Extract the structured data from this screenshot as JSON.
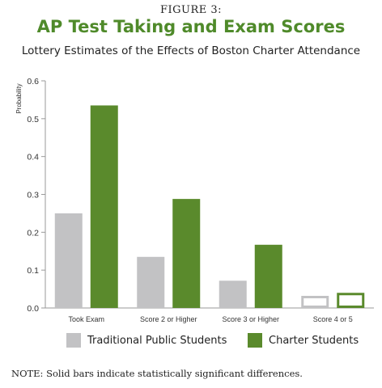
{
  "figure_label": "FIGURE 3:",
  "title": "AP Test Taking and Exam Scores",
  "subtitle": "Lottery Estimates of the Effects of Boston Charter Attendance",
  "note": "NOTE: Solid bars indicate statistically significant differences.",
  "colors": {
    "traditional": "#c2c2c4",
    "charter": "#5a8a2c",
    "axis": "#9a9a9a"
  },
  "chart_data": {
    "type": "bar",
    "categories": [
      "Took Exam",
      "Score 2 or Higher",
      "Score 3 or Higher",
      "Score 4 or 5"
    ],
    "series": [
      {
        "name": "Traditional Public Students",
        "values": [
          0.25,
          0.135,
          0.072,
          0.032
        ],
        "solid": [
          true,
          true,
          true,
          false
        ]
      },
      {
        "name": "Charter Students",
        "values": [
          0.535,
          0.288,
          0.167,
          0.04
        ],
        "solid": [
          true,
          true,
          true,
          false
        ]
      }
    ],
    "ylabel": "Probability",
    "ylim": [
      0,
      0.6
    ],
    "yticks": [
      "0.0",
      "0.1",
      "0.2",
      "0.3",
      "0.4",
      "0.5",
      "0.6"
    ],
    "grid": false,
    "legend": "bottom"
  }
}
